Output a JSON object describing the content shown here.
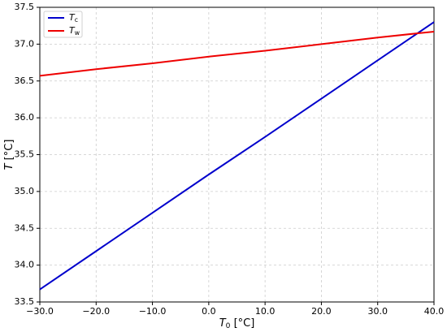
{
  "chart_data": {
    "type": "line",
    "xlabel": "T0 [°C]",
    "ylabel": "T [°C]",
    "x": [
      -30,
      -20,
      -10,
      0,
      10,
      20,
      30,
      40
    ],
    "series": [
      {
        "name": "Tc",
        "color": "#0000cc",
        "values": [
          33.67,
          34.19,
          34.71,
          35.23,
          35.74,
          36.26,
          36.78,
          37.3
        ]
      },
      {
        "name": "Tw",
        "color": "#ee0000",
        "values": [
          36.57,
          36.66,
          36.74,
          36.83,
          36.91,
          37.0,
          37.09,
          37.17
        ]
      }
    ],
    "xlim": [
      -30,
      40
    ],
    "xticks": [
      {
        "value": -30,
        "label": "−30.0"
      },
      {
        "value": -20,
        "label": "−20.0"
      },
      {
        "value": -10,
        "label": "−10.0"
      },
      {
        "value": 0,
        "label": "0.0"
      },
      {
        "value": 10,
        "label": "10.0"
      },
      {
        "value": 20,
        "label": "20.0"
      },
      {
        "value": 30,
        "label": "30.0"
      },
      {
        "value": 40,
        "label": "40.0"
      }
    ],
    "ylim": [
      33.5,
      37.5
    ],
    "yticks": [
      33.5,
      {
        "value": 34,
        "label": "34.0"
      },
      34.5,
      {
        "value": 35,
        "label": "35.0"
      },
      35.5,
      {
        "value": 36,
        "label": "36.0"
      },
      36.5,
      {
        "value": 37,
        "label": "37.0"
      },
      37.5
    ],
    "grid": true,
    "legend": "upper left"
  }
}
